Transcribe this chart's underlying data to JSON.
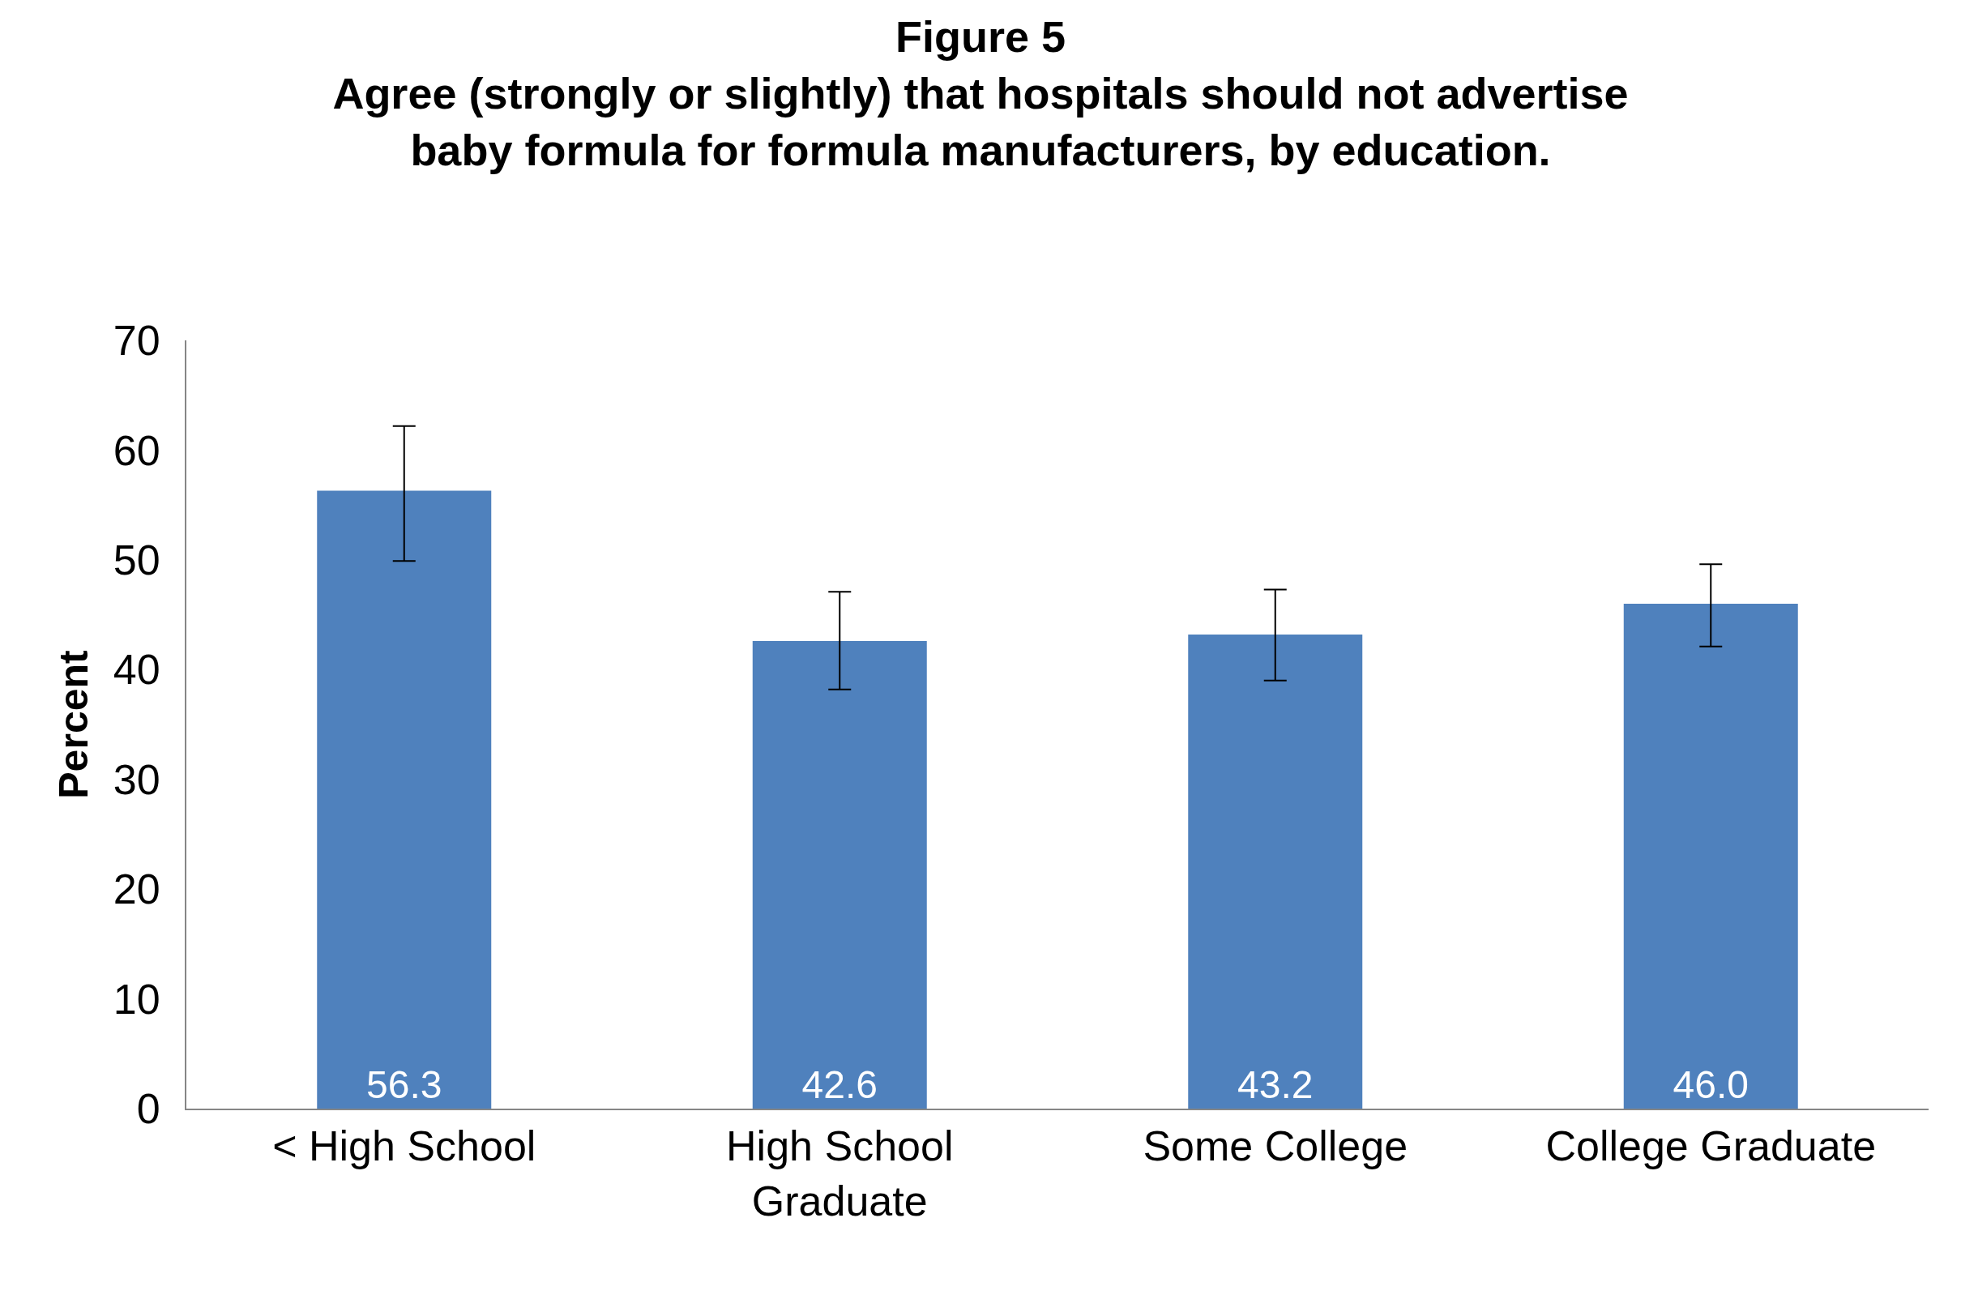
{
  "chart_data": {
    "type": "bar",
    "title": "Figure 5\nAgree (strongly or slightly) that hospitals should not advertise\nbaby formula for formula manufacturers, by education.",
    "ylabel": "Percent",
    "categories": [
      "< High School",
      "High School Graduate",
      "Some College",
      "College Graduate"
    ],
    "values": [
      56.3,
      42.6,
      43.2,
      46.0
    ],
    "value_labels": [
      "56.3",
      "42.6",
      "43.2",
      "46.0"
    ],
    "errors": [
      [
        49.9,
        62.2
      ],
      [
        38.2,
        47.1
      ],
      [
        39.0,
        47.3
      ],
      [
        42.1,
        49.6
      ]
    ],
    "color": "#4f81bd",
    "ylim": [
      0,
      70
    ],
    "yticks": [
      0,
      10,
      20,
      30,
      40,
      50,
      60,
      70
    ],
    "grid": false
  }
}
